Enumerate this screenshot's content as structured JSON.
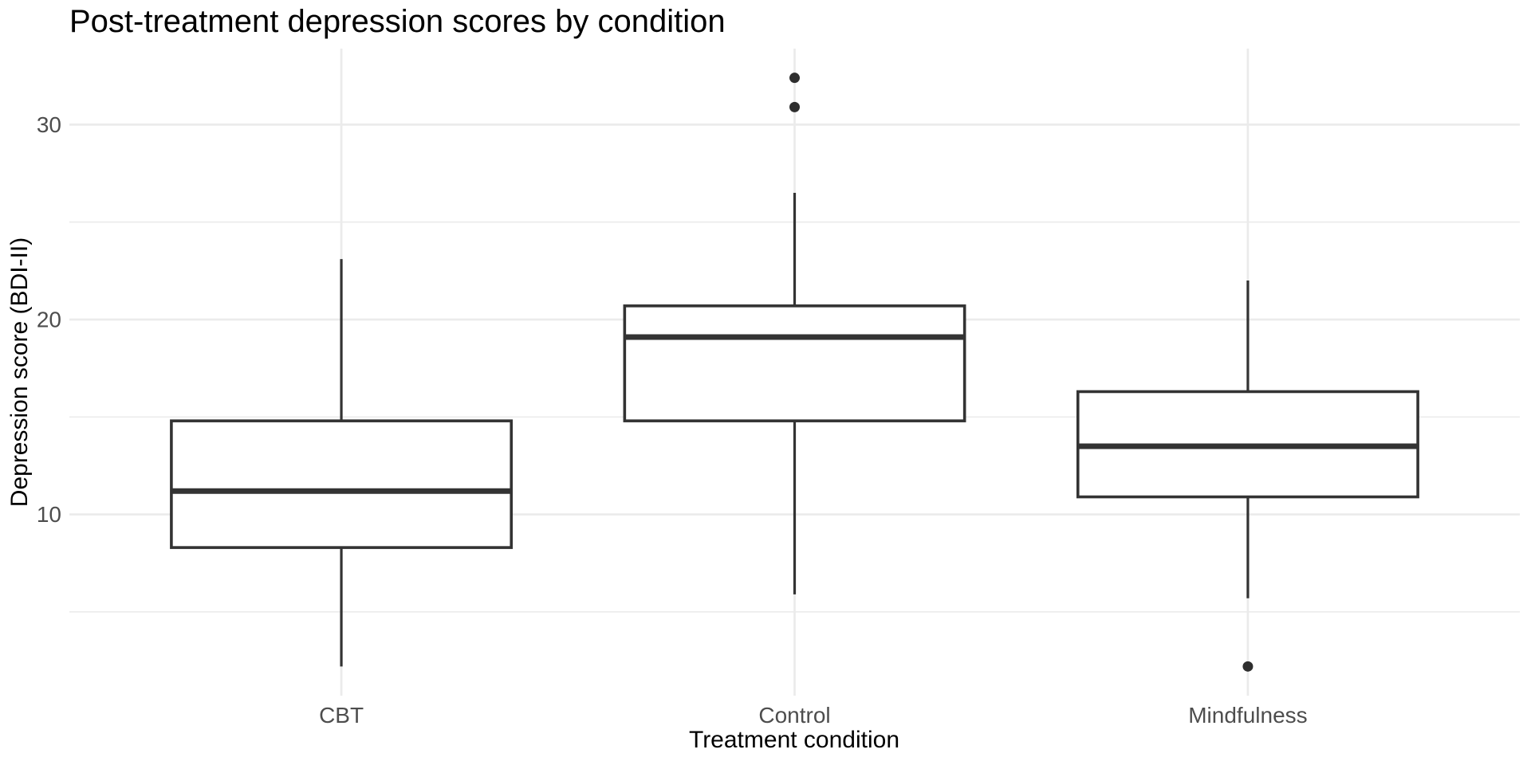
{
  "chart_data": {
    "type": "boxplot",
    "title": "Post-treatment depression scores by condition",
    "xlabel": "Treatment condition",
    "ylabel": "Depression score (BDI-II)",
    "categories": [
      "CBT",
      "Control",
      "Mindfulness"
    ],
    "y_tick_labels": [
      "10",
      "20",
      "30"
    ],
    "y_major_ticks": [
      10,
      20,
      30
    ],
    "y_minor_gridlines": [
      5,
      15,
      25
    ],
    "ylim": [
      0.7,
      33.9
    ],
    "legend_position": "none",
    "grid": "horizontal major+minor gridlines, vertical gridline at each category",
    "series": [
      {
        "category": "CBT",
        "whisker_low": 2.2,
        "q1": 8.3,
        "median": 11.2,
        "q3": 14.8,
        "whisker_high": 23.1,
        "outliers": []
      },
      {
        "category": "Control",
        "whisker_low": 5.9,
        "q1": 14.8,
        "median": 19.1,
        "q3": 20.7,
        "whisker_high": 26.5,
        "outliers": [
          30.9,
          32.4
        ]
      },
      {
        "category": "Mindfulness",
        "whisker_low": 5.7,
        "q1": 10.9,
        "median": 13.5,
        "q3": 16.3,
        "whisker_high": 22.0,
        "outliers": [
          2.2
        ]
      }
    ],
    "colors": {
      "background": "#FFFFFF",
      "gridline": "#EBEBEB",
      "box_stroke": "#333333",
      "box_fill": "#FFFFFF",
      "median_stroke": "#333333",
      "outlier_fill": "#2E2E2E",
      "tick_label_text": "#4D4D4D",
      "title_text": "#000000"
    }
  }
}
